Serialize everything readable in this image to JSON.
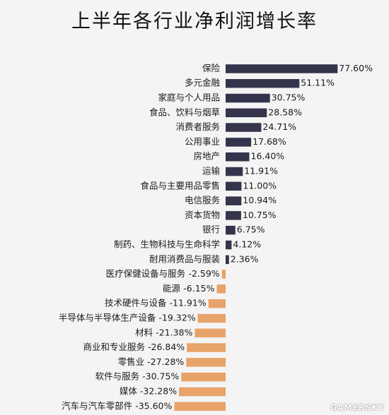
{
  "chart_data": {
    "type": "bar",
    "orientation": "horizontal",
    "title": "上半年各行业净利润增长率",
    "categories": [
      "保险",
      "多元金融",
      "家庭与个人用品",
      "食品、饮料与烟草",
      "消费者服务",
      "公用事业",
      "房地产",
      "运输",
      "食品与主要用品零售",
      "电信服务",
      "资本货物",
      "银行",
      "制药、生物科技与生命科学",
      "耐用消费品与服装",
      "医疗保健设备与服务",
      "能源",
      "技术硬件与设备",
      "半导体与半导体生产设备",
      "材料",
      "商业和专业服务",
      "零售业",
      "软件与服务",
      "媒体",
      "汽车与汽车零部件"
    ],
    "values": [
      77.6,
      51.11,
      30.75,
      28.58,
      24.71,
      17.68,
      16.4,
      11.91,
      11.0,
      10.94,
      10.75,
      6.75,
      4.12,
      2.36,
      -2.59,
      -6.15,
      -11.91,
      -19.32,
      -21.38,
      -26.84,
      -27.28,
      -30.75,
      -32.28,
      -35.6
    ],
    "value_labels": [
      "77.60%",
      "51.11%",
      "30.75%",
      "28.58%",
      "24.71%",
      "17.68%",
      "16.40%",
      "11.91%",
      "11.00%",
      "10.94%",
      "10.75%",
      "6.75%",
      "4.12%",
      "2.36%",
      "-2.59%",
      "-6.15%",
      "-11.91%",
      "-19.32%",
      "-21.38%",
      "-26.84%",
      "-27.28%",
      "-30.75%",
      "-32.28%",
      "-35.60%"
    ],
    "colors": {
      "positive": "#34344c",
      "negative": "#e8a36a"
    },
    "unit": "%"
  },
  "watermark": "GAMERSKY"
}
